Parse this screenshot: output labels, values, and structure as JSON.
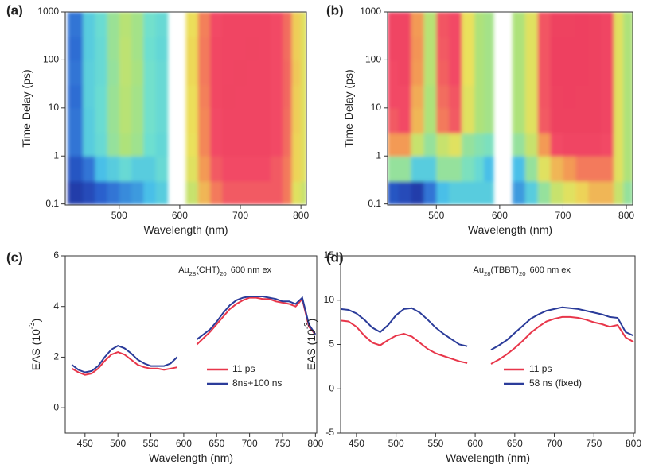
{
  "chart_data": [
    {
      "type": "heatmap",
      "panel_label": "(a)",
      "x_label": [
        "Wavelength (nm)"
      ],
      "y_label": [
        "Time Delay (ps)"
      ],
      "xlim": [
        411,
        809
      ],
      "xticks": [
        500,
        600,
        700,
        800
      ],
      "ylim": [
        0.095,
        1000
      ],
      "yticks": [
        0.1,
        1,
        10,
        100,
        1000
      ],
      "yscale": "log",
      "colormap": [
        "#1b2590",
        "#2a62d0",
        "#48bfe8",
        "#6fe0cf",
        "#aee27a",
        "#ece15a",
        "#f39a55",
        "#f24a66",
        "#e83358"
      ],
      "x_edges": [
        415,
        440,
        460,
        480,
        500,
        520,
        540,
        560,
        580,
        610,
        630,
        650,
        670,
        690,
        710,
        730,
        750,
        770,
        785,
        800,
        809
      ],
      "y_edges": [
        0.1,
        0.3,
        1,
        3,
        10,
        30,
        100,
        300,
        1000
      ],
      "z": [
        [
          0.05,
          0.08,
          0.12,
          0.15,
          0.18,
          0.2,
          0.25,
          0.3,
          null,
          0.55,
          0.7,
          0.8,
          0.85,
          0.85,
          0.85,
          0.85,
          0.85,
          0.8,
          0.6,
          0.55
        ],
        [
          0.1,
          0.15,
          0.25,
          0.3,
          0.35,
          0.3,
          0.3,
          0.35,
          null,
          0.6,
          0.75,
          0.85,
          0.88,
          0.88,
          0.88,
          0.88,
          0.85,
          0.8,
          0.65,
          0.6
        ],
        [
          0.15,
          0.3,
          0.35,
          0.45,
          0.5,
          0.47,
          0.37,
          0.34,
          null,
          0.62,
          0.78,
          0.88,
          0.9,
          0.9,
          0.9,
          0.9,
          0.88,
          0.82,
          0.65,
          0.6
        ],
        [
          0.15,
          0.3,
          0.36,
          0.46,
          0.52,
          0.48,
          0.38,
          0.35,
          null,
          0.63,
          0.78,
          0.88,
          0.9,
          0.9,
          0.9,
          0.9,
          0.88,
          0.82,
          0.66,
          0.6
        ],
        [
          0.14,
          0.31,
          0.36,
          0.46,
          0.52,
          0.48,
          0.38,
          0.35,
          null,
          0.63,
          0.79,
          0.89,
          0.91,
          0.9,
          0.9,
          0.9,
          0.88,
          0.83,
          0.66,
          0.6
        ],
        [
          0.15,
          0.31,
          0.35,
          0.45,
          0.53,
          0.49,
          0.38,
          0.35,
          null,
          0.64,
          0.8,
          0.89,
          0.9,
          0.91,
          0.9,
          0.9,
          0.88,
          0.83,
          0.67,
          0.6
        ],
        [
          0.14,
          0.3,
          0.35,
          0.46,
          0.53,
          0.48,
          0.37,
          0.34,
          null,
          0.64,
          0.8,
          0.89,
          0.9,
          0.9,
          0.91,
          0.9,
          0.88,
          0.82,
          0.66,
          0.6
        ],
        [
          0.15,
          0.3,
          0.36,
          0.46,
          0.52,
          0.48,
          0.38,
          0.35,
          null,
          0.63,
          0.79,
          0.88,
          0.9,
          0.9,
          0.9,
          0.9,
          0.88,
          0.82,
          0.66,
          0.6
        ]
      ]
    },
    {
      "type": "heatmap",
      "panel_label": "(b)",
      "x_label": [
        "Wavelength (nm)"
      ],
      "y_label": [
        "Time Delay (ps)"
      ],
      "xlim": [
        423,
        810
      ],
      "xticks": [
        500,
        600,
        700,
        800
      ],
      "ylim": [
        0.095,
        1000
      ],
      "yticks": [
        0.1,
        1,
        10,
        100,
        1000
      ],
      "yscale": "log",
      "colormap": [
        "#1b2590",
        "#2a62d0",
        "#48bfe8",
        "#6fe0cf",
        "#aee27a",
        "#ece15a",
        "#f39a55",
        "#f24a66",
        "#e83358"
      ],
      "x_edges": [
        423,
        440,
        460,
        480,
        500,
        520,
        540,
        560,
        575,
        590,
        620,
        640,
        660,
        680,
        700,
        720,
        740,
        760,
        780,
        795,
        810
      ],
      "y_edges": [
        0.1,
        0.3,
        1,
        3,
        10,
        30,
        100,
        300,
        1000
      ],
      "z": [
        [
          0.1,
          0.08,
          0.05,
          0.15,
          0.25,
          0.3,
          0.3,
          0.3,
          0.3,
          null,
          0.2,
          0.3,
          0.45,
          0.55,
          0.6,
          0.65,
          0.7,
          0.7,
          0.55,
          0.45
        ],
        [
          0.45,
          0.45,
          0.3,
          0.3,
          0.45,
          0.45,
          0.4,
          0.35,
          0.25,
          null,
          0.25,
          0.45,
          0.6,
          0.7,
          0.75,
          0.8,
          0.8,
          0.8,
          0.6,
          0.5
        ],
        [
          0.75,
          0.75,
          0.55,
          0.45,
          0.55,
          0.6,
          0.45,
          0.42,
          0.4,
          null,
          0.45,
          0.55,
          0.75,
          0.88,
          0.9,
          0.9,
          0.9,
          0.88,
          0.6,
          0.5
        ],
        [
          0.85,
          0.88,
          0.7,
          0.5,
          0.8,
          0.85,
          0.6,
          0.5,
          0.48,
          null,
          0.5,
          0.6,
          0.85,
          0.92,
          0.92,
          0.92,
          0.92,
          0.9,
          0.6,
          0.5
        ],
        [
          0.88,
          0.88,
          0.72,
          0.5,
          0.82,
          0.86,
          0.6,
          0.5,
          0.48,
          null,
          0.5,
          0.6,
          0.86,
          0.92,
          0.93,
          0.92,
          0.92,
          0.9,
          0.6,
          0.5
        ],
        [
          0.88,
          0.9,
          0.75,
          0.52,
          0.84,
          0.88,
          0.62,
          0.5,
          0.48,
          null,
          0.5,
          0.6,
          0.86,
          0.93,
          0.93,
          0.93,
          0.92,
          0.9,
          0.6,
          0.5
        ],
        [
          0.9,
          0.9,
          0.76,
          0.52,
          0.85,
          0.88,
          0.62,
          0.5,
          0.48,
          null,
          0.5,
          0.6,
          0.86,
          0.93,
          0.93,
          0.93,
          0.92,
          0.9,
          0.6,
          0.5
        ],
        [
          0.9,
          0.9,
          0.75,
          0.52,
          0.86,
          0.88,
          0.62,
          0.5,
          0.48,
          null,
          0.5,
          0.6,
          0.86,
          0.92,
          0.92,
          0.93,
          0.92,
          0.9,
          0.6,
          0.5
        ]
      ]
    },
    {
      "type": "line",
      "panel_label": "(c)",
      "x_label": [
        "Wavelength (nm)"
      ],
      "y_label": [
        "EAS (10",
        "-3",
        ")"
      ],
      "annotation": [
        "Au",
        "28",
        "(CHT)",
        "20",
        "600 nm ex"
      ],
      "xlim": [
        420,
        802
      ],
      "xticks": [
        450,
        500,
        550,
        600,
        650,
        700,
        750,
        800
      ],
      "ylim": [
        -1,
        6
      ],
      "yticks": [
        0,
        2,
        4,
        6
      ],
      "legend": "lower center",
      "x": [
        430,
        440,
        450,
        460,
        470,
        480,
        490,
        500,
        510,
        520,
        530,
        540,
        550,
        560,
        570,
        580,
        590,
        600,
        610,
        620,
        630,
        640,
        650,
        660,
        670,
        680,
        690,
        700,
        710,
        720,
        730,
        740,
        750,
        760,
        770,
        780,
        790,
        800
      ],
      "series": [
        {
          "name": "11 ps",
          "color": "#e8364a",
          "values": [
            1.55,
            1.4,
            1.3,
            1.35,
            1.55,
            1.85,
            2.1,
            2.2,
            2.1,
            1.9,
            1.7,
            1.6,
            1.55,
            1.55,
            1.5,
            1.55,
            1.6,
            null,
            null,
            2.5,
            2.75,
            3.0,
            3.3,
            3.6,
            3.9,
            4.1,
            4.25,
            4.35,
            4.35,
            4.3,
            4.3,
            4.2,
            4.15,
            4.1,
            4.0,
            4.3,
            3.2,
            2.9
          ]
        },
        {
          "name": "8ns+100 ns",
          "color": "#2b3c9a",
          "values": [
            1.7,
            1.5,
            1.4,
            1.45,
            1.65,
            2.0,
            2.3,
            2.45,
            2.35,
            2.15,
            1.9,
            1.75,
            1.65,
            1.65,
            1.65,
            1.75,
            2.0,
            null,
            null,
            2.7,
            2.9,
            3.1,
            3.4,
            3.75,
            4.05,
            4.25,
            4.35,
            4.4,
            4.4,
            4.4,
            4.35,
            4.3,
            4.2,
            4.2,
            4.1,
            4.35,
            3.3,
            2.9
          ]
        }
      ]
    },
    {
      "type": "line",
      "panel_label": "(d)",
      "x_label": [
        "Wavelength (nm)"
      ],
      "y_label": [
        "EAS (10",
        "-3",
        ")"
      ],
      "annotation": [
        "Au",
        "28",
        "(TBBT)",
        "20",
        "600 nm ex"
      ],
      "xlim": [
        430,
        802
      ],
      "xticks": [
        450,
        500,
        550,
        600,
        650,
        700,
        750,
        800
      ],
      "ylim": [
        -5,
        15
      ],
      "yticks": [
        -5,
        0,
        5,
        10,
        15
      ],
      "legend": "lower center",
      "x": [
        430,
        440,
        450,
        460,
        470,
        480,
        490,
        500,
        510,
        520,
        530,
        540,
        550,
        560,
        570,
        580,
        590,
        600,
        610,
        620,
        630,
        640,
        650,
        660,
        670,
        680,
        690,
        700,
        710,
        720,
        730,
        740,
        750,
        760,
        770,
        780,
        790,
        800
      ],
      "series": [
        {
          "name": "11 ps",
          "color": "#e8364a",
          "values": [
            7.7,
            7.6,
            7.0,
            6.0,
            5.2,
            4.9,
            5.5,
            6.0,
            6.2,
            5.9,
            5.2,
            4.5,
            4.0,
            3.7,
            3.4,
            3.1,
            2.9,
            null,
            null,
            2.8,
            3.3,
            3.9,
            4.6,
            5.4,
            6.3,
            7.0,
            7.6,
            7.9,
            8.1,
            8.1,
            8.0,
            7.8,
            7.5,
            7.3,
            7.0,
            7.2,
            5.8,
            5.3
          ]
        },
        {
          "name": "58 ns (fixed)",
          "color": "#2b3c9a",
          "values": [
            9.0,
            8.9,
            8.5,
            7.8,
            6.9,
            6.4,
            7.2,
            8.3,
            9.0,
            9.1,
            8.6,
            7.8,
            6.9,
            6.2,
            5.6,
            5.0,
            4.8,
            null,
            null,
            4.4,
            4.9,
            5.5,
            6.3,
            7.1,
            7.9,
            8.4,
            8.8,
            9.0,
            9.2,
            9.1,
            9.0,
            8.8,
            8.6,
            8.4,
            8.1,
            8.0,
            6.4,
            6.0
          ]
        }
      ]
    }
  ]
}
